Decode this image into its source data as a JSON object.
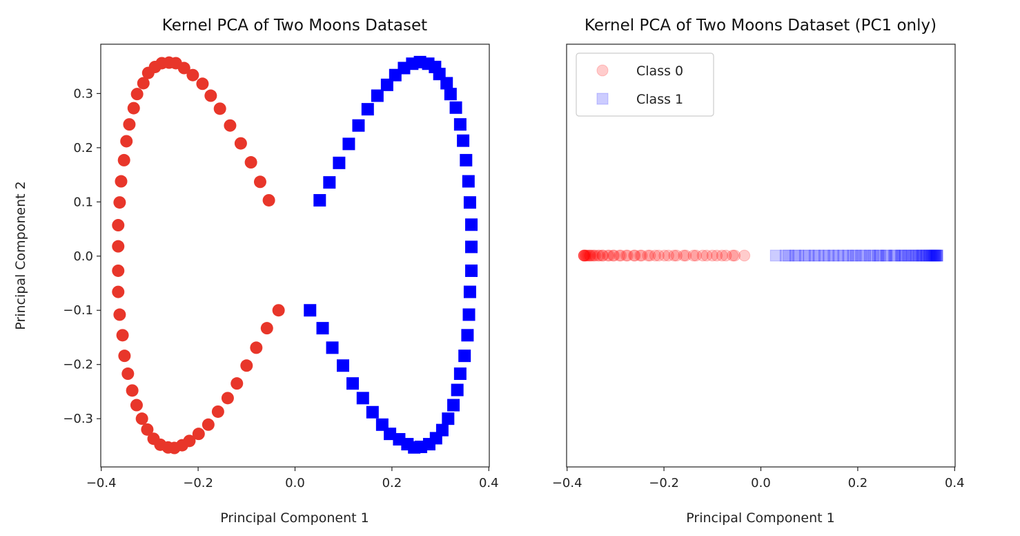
{
  "chart_data": [
    {
      "type": "scatter",
      "title": "Kernel PCA of Two Moons Dataset",
      "xlabel": "Principal Component 1",
      "ylabel": "Principal Component 2",
      "xlim": [
        -0.401,
        0.401
      ],
      "ylim": [
        -0.389,
        0.391
      ],
      "xticks": [
        -0.4,
        -0.2,
        0.0,
        0.2,
        0.4
      ],
      "xtick_labels": [
        "−0.4",
        "−0.2",
        "0.0",
        "0.2",
        "0.4"
      ],
      "yticks": [
        -0.3,
        -0.2,
        -0.1,
        0.0,
        0.1,
        0.2,
        0.3
      ],
      "ytick_labels": [
        "−0.3",
        "−0.2",
        "−0.1",
        "0.0",
        "0.1",
        "0.2",
        "0.3"
      ],
      "grid": false,
      "series": [
        {
          "marker": "circle",
          "color": "#e8362a",
          "points": [
            [
              -0.054,
              0.103
            ],
            [
              -0.072,
              0.137
            ],
            [
              -0.091,
              0.173
            ],
            [
              -0.112,
              0.208
            ],
            [
              -0.134,
              0.241
            ],
            [
              -0.155,
              0.272
            ],
            [
              -0.174,
              0.296
            ],
            [
              -0.191,
              0.318
            ],
            [
              -0.211,
              0.334
            ],
            [
              -0.229,
              0.347
            ],
            [
              -0.246,
              0.356
            ],
            [
              -0.26,
              0.357
            ],
            [
              -0.275,
              0.356
            ],
            [
              -0.289,
              0.349
            ],
            [
              -0.303,
              0.338
            ],
            [
              -0.313,
              0.319
            ],
            [
              -0.326,
              0.299
            ],
            [
              -0.333,
              0.273
            ],
            [
              -0.342,
              0.243
            ],
            [
              -0.348,
              0.212
            ],
            [
              -0.353,
              0.177
            ],
            [
              -0.359,
              0.138
            ],
            [
              -0.362,
              0.099
            ],
            [
              -0.365,
              0.057
            ],
            [
              -0.365,
              0.018
            ],
            [
              -0.365,
              -0.027
            ],
            [
              -0.365,
              -0.066
            ],
            [
              -0.362,
              -0.108
            ],
            [
              -0.356,
              -0.146
            ],
            [
              -0.352,
              -0.184
            ],
            [
              -0.345,
              -0.217
            ],
            [
              -0.336,
              -0.248
            ],
            [
              -0.327,
              -0.275
            ],
            [
              -0.316,
              -0.3
            ],
            [
              -0.305,
              -0.32
            ],
            [
              -0.292,
              -0.337
            ],
            [
              -0.278,
              -0.348
            ],
            [
              -0.262,
              -0.353
            ],
            [
              -0.249,
              -0.354
            ],
            [
              -0.233,
              -0.349
            ],
            [
              -0.218,
              -0.341
            ],
            [
              -0.199,
              -0.328
            ],
            [
              -0.179,
              -0.311
            ],
            [
              -0.159,
              -0.287
            ],
            [
              -0.139,
              -0.262
            ],
            [
              -0.12,
              -0.235
            ],
            [
              -0.1,
              -0.202
            ],
            [
              -0.08,
              -0.169
            ],
            [
              -0.058,
              -0.133
            ],
            [
              -0.034,
              -0.1
            ]
          ]
        },
        {
          "marker": "square",
          "color": "#0000ff",
          "points": [
            [
              0.051,
              0.103
            ],
            [
              0.071,
              0.136
            ],
            [
              0.091,
              0.172
            ],
            [
              0.111,
              0.207
            ],
            [
              0.131,
              0.241
            ],
            [
              0.15,
              0.271
            ],
            [
              0.17,
              0.296
            ],
            [
              0.19,
              0.316
            ],
            [
              0.207,
              0.334
            ],
            [
              0.225,
              0.347
            ],
            [
              0.242,
              0.355
            ],
            [
              0.258,
              0.358
            ],
            [
              0.275,
              0.355
            ],
            [
              0.289,
              0.349
            ],
            [
              0.298,
              0.336
            ],
            [
              0.313,
              0.319
            ],
            [
              0.321,
              0.299
            ],
            [
              0.332,
              0.274
            ],
            [
              0.341,
              0.243
            ],
            [
              0.347,
              0.213
            ],
            [
              0.353,
              0.177
            ],
            [
              0.358,
              0.138
            ],
            [
              0.361,
              0.099
            ],
            [
              0.364,
              0.058
            ],
            [
              0.364,
              0.017
            ],
            [
              0.364,
              -0.027
            ],
            [
              0.361,
              -0.066
            ],
            [
              0.359,
              -0.108
            ],
            [
              0.356,
              -0.146
            ],
            [
              0.35,
              -0.184
            ],
            [
              0.341,
              -0.217
            ],
            [
              0.335,
              -0.247
            ],
            [
              0.327,
              -0.275
            ],
            [
              0.316,
              -0.3
            ],
            [
              0.304,
              -0.321
            ],
            [
              0.291,
              -0.336
            ],
            [
              0.277,
              -0.347
            ],
            [
              0.26,
              -0.352
            ],
            [
              0.246,
              -0.353
            ],
            [
              0.232,
              -0.347
            ],
            [
              0.215,
              -0.338
            ],
            [
              0.196,
              -0.328
            ],
            [
              0.18,
              -0.311
            ],
            [
              0.16,
              -0.288
            ],
            [
              0.14,
              -0.262
            ],
            [
              0.119,
              -0.235
            ],
            [
              0.099,
              -0.202
            ],
            [
              0.077,
              -0.169
            ],
            [
              0.057,
              -0.133
            ],
            [
              0.031,
              -0.1
            ]
          ]
        }
      ]
    },
    {
      "type": "scatter",
      "title": "Kernel PCA of Two Moons Dataset (PC1 only)",
      "xlabel": "Principal Component 1",
      "xlim": [
        -0.401,
        0.401
      ],
      "xticks": [
        -0.4,
        -0.2,
        0.0,
        0.2,
        0.4
      ],
      "xtick_labels": [
        "−0.4",
        "−0.2",
        "0.0",
        "0.2",
        "0.4"
      ],
      "yticks": [],
      "grid": false,
      "legend": {
        "placement": "upper-left",
        "entries": [
          "Class 0",
          "Class 1"
        ]
      },
      "series": [
        {
          "name": "Class 0",
          "marker": "circle",
          "color": "#ff0000",
          "alpha": 0.2,
          "y": 0
        },
        {
          "name": "Class 1",
          "marker": "square",
          "color": "#0000ff",
          "alpha": 0.2,
          "y": 0
        }
      ]
    }
  ]
}
